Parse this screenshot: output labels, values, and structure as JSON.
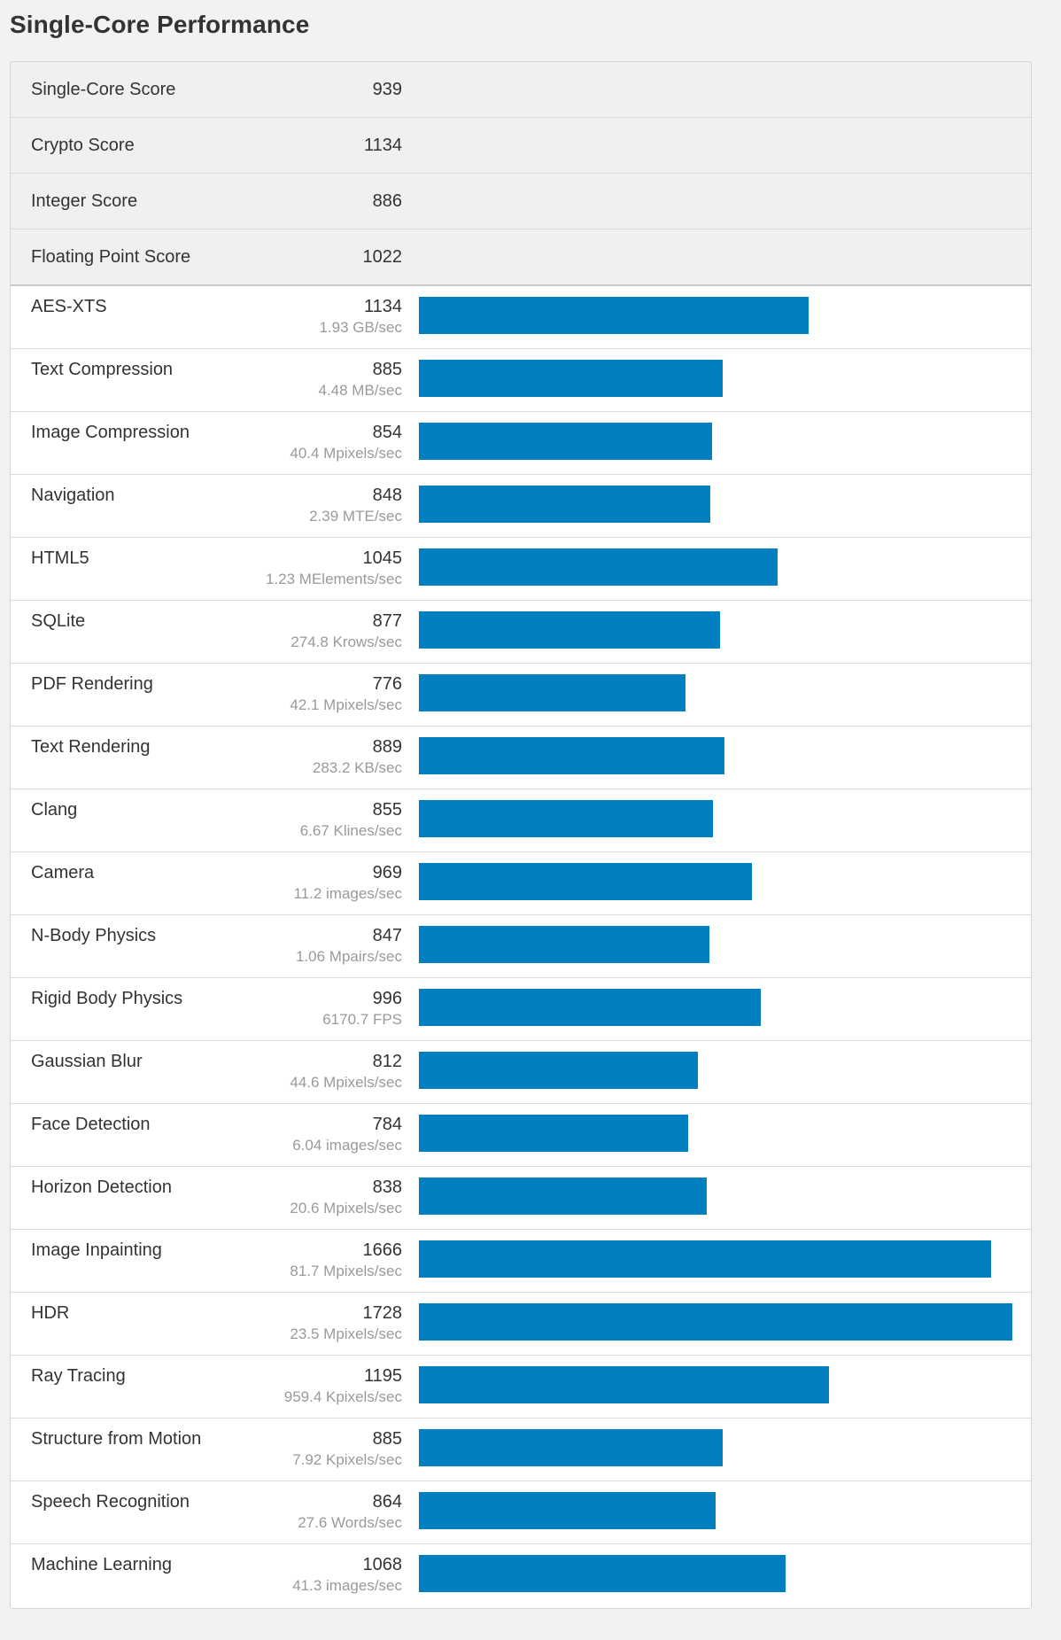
{
  "title": "Single-Core Performance",
  "colors": {
    "bar": "#0080c0",
    "summary_bg": "#f0f0f0",
    "rate_text": "#9a9a9a"
  },
  "bar_scale_max": 1728,
  "summary": [
    {
      "name": "Single-Core Score",
      "score": "939"
    },
    {
      "name": "Crypto Score",
      "score": "1134"
    },
    {
      "name": "Integer Score",
      "score": "886"
    },
    {
      "name": "Floating Point Score",
      "score": "1022"
    }
  ],
  "benchmarks": [
    {
      "name": "AES-XTS",
      "score": 1134,
      "rate": "1.93 GB/sec"
    },
    {
      "name": "Text Compression",
      "score": 885,
      "rate": "4.48 MB/sec"
    },
    {
      "name": "Image Compression",
      "score": 854,
      "rate": "40.4 Mpixels/sec"
    },
    {
      "name": "Navigation",
      "score": 848,
      "rate": "2.39 MTE/sec"
    },
    {
      "name": "HTML5",
      "score": 1045,
      "rate": "1.23 MElements/sec"
    },
    {
      "name": "SQLite",
      "score": 877,
      "rate": "274.8 Krows/sec"
    },
    {
      "name": "PDF Rendering",
      "score": 776,
      "rate": "42.1 Mpixels/sec"
    },
    {
      "name": "Text Rendering",
      "score": 889,
      "rate": "283.2 KB/sec"
    },
    {
      "name": "Clang",
      "score": 855,
      "rate": "6.67 Klines/sec"
    },
    {
      "name": "Camera",
      "score": 969,
      "rate": "11.2 images/sec"
    },
    {
      "name": "N-Body Physics",
      "score": 847,
      "rate": "1.06 Mpairs/sec"
    },
    {
      "name": "Rigid Body Physics",
      "score": 996,
      "rate": "6170.7 FPS"
    },
    {
      "name": "Gaussian Blur",
      "score": 812,
      "rate": "44.6 Mpixels/sec"
    },
    {
      "name": "Face Detection",
      "score": 784,
      "rate": "6.04 images/sec"
    },
    {
      "name": "Horizon Detection",
      "score": 838,
      "rate": "20.6 Mpixels/sec"
    },
    {
      "name": "Image Inpainting",
      "score": 1666,
      "rate": "81.7 Mpixels/sec"
    },
    {
      "name": "HDR",
      "score": 1728,
      "rate": "23.5 Mpixels/sec"
    },
    {
      "name": "Ray Tracing",
      "score": 1195,
      "rate": "959.4 Kpixels/sec"
    },
    {
      "name": "Structure from Motion",
      "score": 885,
      "rate": "7.92 Kpixels/sec"
    },
    {
      "name": "Speech Recognition",
      "score": 864,
      "rate": "27.6 Words/sec"
    },
    {
      "name": "Machine Learning",
      "score": 1068,
      "rate": "41.3 images/sec"
    }
  ]
}
